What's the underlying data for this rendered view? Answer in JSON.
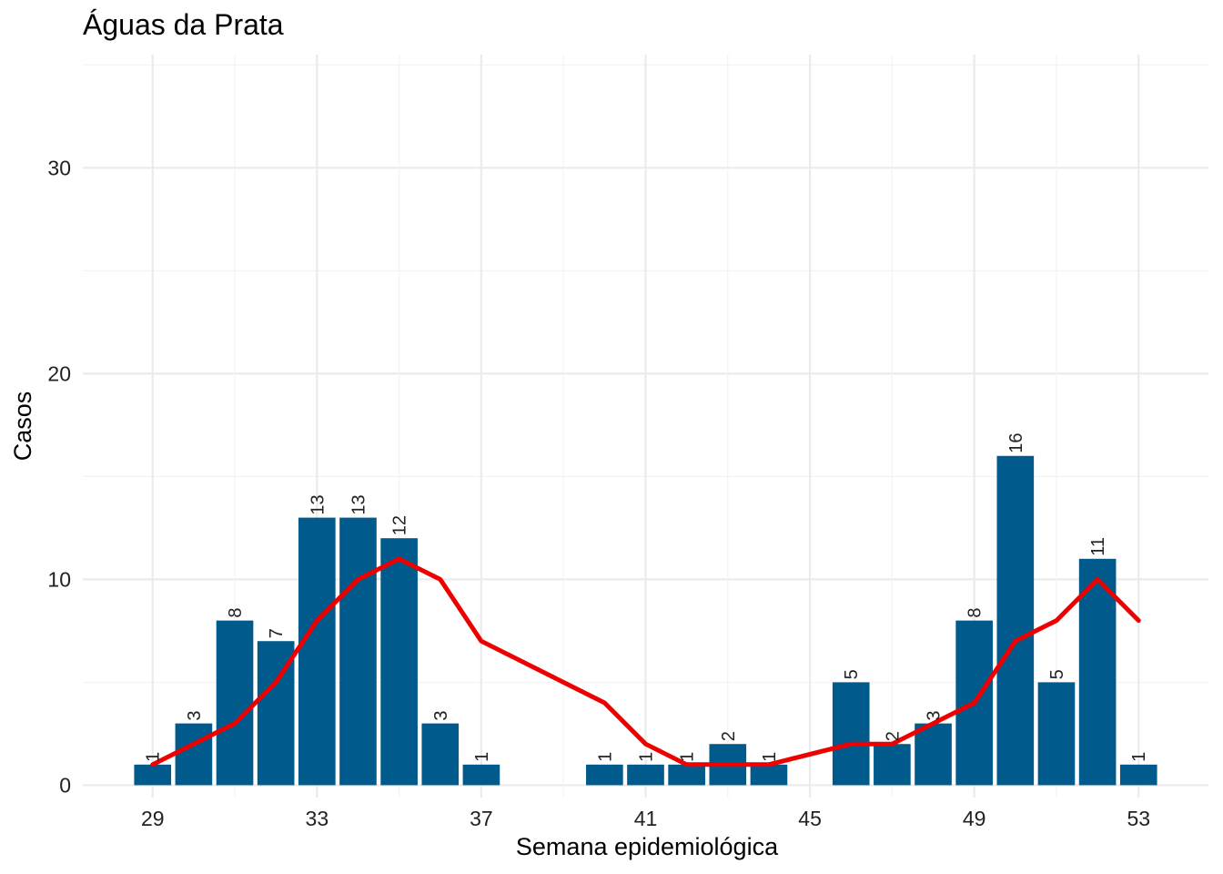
{
  "chart_data": {
    "type": "bar",
    "title": "Águas da Prata",
    "xlabel": "Semana epidemiológica",
    "ylabel": "Casos",
    "x_ticks": [
      29,
      33,
      37,
      41,
      45,
      49,
      53
    ],
    "y_ticks": [
      0,
      10,
      20,
      30
    ],
    "xlim": [
      27.3,
      54.7
    ],
    "ylim": [
      -0.6,
      35.5
    ],
    "grid": true,
    "bars": {
      "x": [
        29,
        30,
        31,
        32,
        33,
        34,
        35,
        36,
        37,
        40,
        41,
        42,
        43,
        44,
        46,
        47,
        48,
        49,
        50,
        51,
        52,
        53
      ],
      "values": [
        1,
        3,
        8,
        7,
        13,
        13,
        12,
        3,
        1,
        1,
        1,
        1,
        2,
        1,
        5,
        2,
        3,
        8,
        16,
        5,
        11,
        1
      ],
      "color": "#005a8c"
    },
    "line": {
      "x": [
        29,
        31,
        32,
        33,
        34,
        35,
        36,
        37,
        40,
        41,
        42,
        44,
        46,
        47,
        49,
        50,
        51,
        52,
        53
      ],
      "values": [
        1,
        3,
        5,
        8,
        10,
        11,
        10,
        7,
        4,
        2,
        1,
        1,
        2,
        2,
        4,
        7,
        8,
        10,
        8
      ],
      "color": "#ee0000"
    }
  }
}
